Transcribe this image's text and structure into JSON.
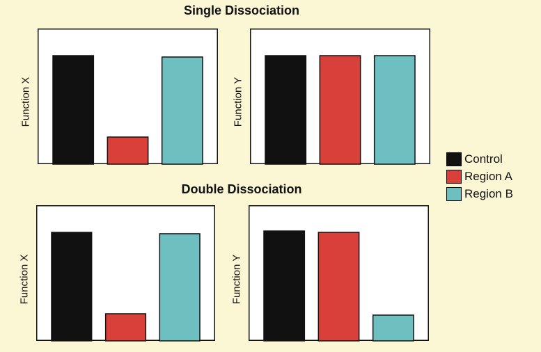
{
  "colors": {
    "background": "#fbf6d3",
    "Control": "#111111",
    "Region A": "#d9403a",
    "Region B": "#6dbfc0"
  },
  "legend": [
    "Control",
    "Region A",
    "Region B"
  ],
  "titles": {
    "single": "Single Dissociation",
    "double": "Double Dissociation"
  },
  "chart_data": [
    {
      "type": "bar",
      "group": "Single Dissociation",
      "ylabel": "Function X",
      "categories": [
        "Control",
        "Region A",
        "Region B"
      ],
      "values": [
        80,
        20,
        79
      ],
      "ylim": [
        0,
        100
      ]
    },
    {
      "type": "bar",
      "group": "Single Dissociation",
      "ylabel": "Function Y",
      "categories": [
        "Control",
        "Region A",
        "Region B"
      ],
      "values": [
        80,
        80,
        80
      ],
      "ylim": [
        0,
        100
      ]
    },
    {
      "type": "bar",
      "group": "Double Dissociation",
      "ylabel": "Function X",
      "categories": [
        "Control",
        "Region A",
        "Region B"
      ],
      "values": [
        80,
        20,
        79
      ],
      "ylim": [
        0,
        100
      ]
    },
    {
      "type": "bar",
      "group": "Double Dissociation",
      "ylabel": "Function Y",
      "categories": [
        "Control",
        "Region A",
        "Region B"
      ],
      "values": [
        81,
        80,
        19
      ],
      "ylim": [
        0,
        100
      ]
    }
  ]
}
